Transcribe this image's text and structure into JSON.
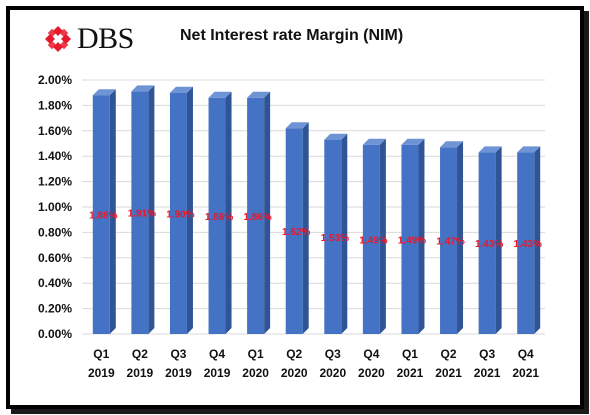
{
  "brand": {
    "name": "DBS",
    "logo_color": "#e8192c"
  },
  "chart_data": {
    "type": "bar",
    "title": "Net Interest rate Margin (NIM)",
    "categories": [
      [
        "Q1",
        "2019"
      ],
      [
        "Q2",
        "2019"
      ],
      [
        "Q3",
        "2019"
      ],
      [
        "Q4",
        "2019"
      ],
      [
        "Q1",
        "2020"
      ],
      [
        "Q2",
        "2020"
      ],
      [
        "Q3",
        "2020"
      ],
      [
        "Q4",
        "2020"
      ],
      [
        "Q1",
        "2021"
      ],
      [
        "Q2",
        "2021"
      ],
      [
        "Q3",
        "2021"
      ],
      [
        "Q4",
        "2021"
      ]
    ],
    "values": [
      1.88,
      1.91,
      1.9,
      1.86,
      1.86,
      1.62,
      1.53,
      1.49,
      1.49,
      1.47,
      1.43,
      1.43
    ],
    "data_labels": [
      "1.88%",
      "1.91%",
      "1.90%",
      "1.86%",
      "1.86%",
      "1.62%",
      "1.53%",
      "1.49%",
      "1.49%",
      "1.47%",
      "1.43%",
      "1.43%"
    ],
    "yticks": [
      "0.00%",
      "0.20%",
      "0.40%",
      "0.60%",
      "0.80%",
      "1.00%",
      "1.20%",
      "1.40%",
      "1.60%",
      "1.80%",
      "2.00%"
    ],
    "ylim": [
      0,
      2.0
    ],
    "grid": true,
    "legend": "none",
    "colors": {
      "bar_front": "#4472c4",
      "bar_side": "#2f5597",
      "bar_top": "#6f94d6",
      "label": "#e8192c"
    }
  }
}
